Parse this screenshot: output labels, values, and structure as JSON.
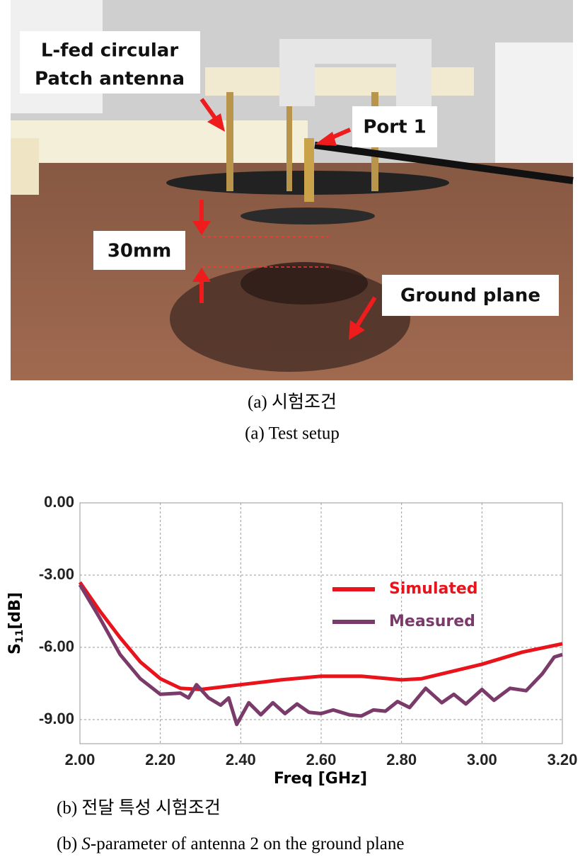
{
  "photo": {
    "labels": {
      "antenna": [
        "L-fed circular",
        "Patch antenna"
      ],
      "port": "Port 1",
      "height": "30mm",
      "ground": "Ground plane"
    }
  },
  "caption_a": {
    "korean": "(a) 시험조건",
    "english": "(a) Test setup"
  },
  "caption_b": {
    "korean": "(b) 전달 특성 시험조건",
    "english": [
      "(b) ",
      "S",
      "-parameter of antenna 2 on the ground plane"
    ]
  },
  "chart_data": {
    "type": "line",
    "x_label": "Freq [GHz]",
    "y_label": [
      "S",
      "11",
      "[dB]"
    ],
    "xlim": [
      2.0,
      3.2
    ],
    "ylim": [
      -10,
      0
    ],
    "xticks": [
      {
        "value": 2.0,
        "label": "2.00"
      },
      {
        "value": 2.2,
        "label": "2.20"
      },
      {
        "value": 2.4,
        "label": "2.40"
      },
      {
        "value": 2.6,
        "label": "2.60"
      },
      {
        "value": 2.8,
        "label": "2.80"
      },
      {
        "value": 3.0,
        "label": "3.00"
      },
      {
        "value": 3.2,
        "label": "3.20"
      }
    ],
    "yticks": [
      {
        "value": 0,
        "label": "0.00"
      },
      {
        "value": -3,
        "label": "-3.00"
      },
      {
        "value": -6,
        "label": "-6.00"
      },
      {
        "value": -9,
        "label": "-9.00"
      }
    ],
    "grid": true,
    "legend": "upper right",
    "series": [
      {
        "name": "Simulated",
        "color": "#e8131b",
        "x": [
          2.0,
          2.05,
          2.1,
          2.15,
          2.2,
          2.25,
          2.3,
          2.4,
          2.5,
          2.6,
          2.7,
          2.8,
          2.85,
          2.9,
          3.0,
          3.1,
          3.2
        ],
        "values": [
          -3.3,
          -4.5,
          -5.6,
          -6.6,
          -7.3,
          -7.7,
          -7.75,
          -7.55,
          -7.35,
          -7.2,
          -7.2,
          -7.35,
          -7.3,
          -7.1,
          -6.7,
          -6.2,
          -5.85
        ]
      },
      {
        "name": "Measured",
        "color": "#7a3b6a",
        "x": [
          2.0,
          2.05,
          2.1,
          2.15,
          2.2,
          2.25,
          2.27,
          2.29,
          2.32,
          2.35,
          2.37,
          2.39,
          2.42,
          2.45,
          2.48,
          2.51,
          2.54,
          2.57,
          2.6,
          2.63,
          2.67,
          2.7,
          2.73,
          2.76,
          2.79,
          2.82,
          2.86,
          2.9,
          2.93,
          2.96,
          3.0,
          3.03,
          3.07,
          3.11,
          3.15,
          3.18,
          3.2
        ],
        "values": [
          -3.4,
          -4.8,
          -6.3,
          -7.3,
          -7.95,
          -7.9,
          -8.1,
          -7.55,
          -8.1,
          -8.4,
          -8.1,
          -9.2,
          -8.3,
          -8.8,
          -8.3,
          -8.75,
          -8.35,
          -8.7,
          -8.75,
          -8.6,
          -8.8,
          -8.85,
          -8.6,
          -8.65,
          -8.25,
          -8.5,
          -7.7,
          -8.3,
          -7.95,
          -8.35,
          -7.75,
          -8.2,
          -7.7,
          -7.8,
          -7.1,
          -6.4,
          -6.3
        ]
      }
    ]
  }
}
